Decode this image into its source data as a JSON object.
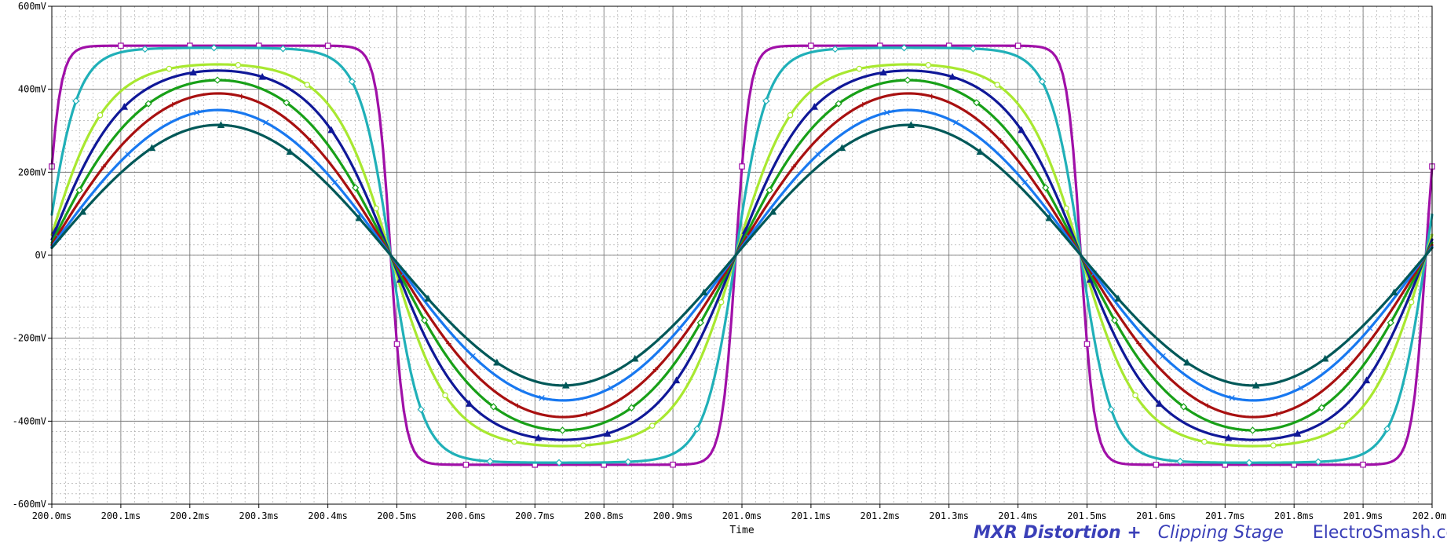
{
  "chart_data": {
    "type": "line",
    "title": "",
    "xlabel": "Time",
    "ylabel": "",
    "xlim": [
      200.0,
      202.0
    ],
    "ylim": [
      -600,
      600
    ],
    "x_unit": "ms",
    "y_unit": "mV",
    "grid": true,
    "x_ticks": [
      200.0,
      200.1,
      200.2,
      200.3,
      200.4,
      200.5,
      200.6,
      200.7,
      200.8,
      200.9,
      201.0,
      201.1,
      201.2,
      201.3,
      201.4,
      201.5,
      201.6,
      201.7,
      201.8,
      201.9,
      202.0
    ],
    "x_tick_labels": [
      "200.0ms",
      "200.1ms",
      "200.2ms",
      "200.3ms",
      "200.4ms",
      "200.5ms",
      "200.6ms",
      "200.7ms",
      "200.8ms",
      "200.9ms",
      "201.0ms",
      "201.1ms",
      "201.2ms",
      "201.3ms",
      "201.4ms",
      "201.5ms",
      "201.6ms",
      "201.7ms",
      "201.8ms",
      "201.9ms",
      "202.0ms"
    ],
    "y_ticks": [
      600,
      400,
      200,
      0,
      -200,
      -400,
      -600
    ],
    "y_tick_labels": [
      "600mV",
      "400mV",
      "200mV",
      "0V",
      "-200mV",
      "-400mV",
      "-600mV"
    ],
    "signal": {
      "period_ms": 1.0,
      "phase_ms": -0.009,
      "x_start": 200.0,
      "x_end": 202.0,
      "samples": 401
    },
    "series": [
      {
        "color": "#a010a8",
        "amplitude_mV": 505,
        "drive": 8.0,
        "marker": "square"
      },
      {
        "color": "#20b0b8",
        "amplitude_mV": 500,
        "drive": 3.5,
        "marker": "diamond"
      },
      {
        "color": "#a8e830",
        "amplitude_mV": 460,
        "drive": 1.8,
        "marker": "circle"
      },
      {
        "color": "#101898",
        "amplitude_mV": 445,
        "drive": 1.3,
        "marker": "triangle"
      },
      {
        "color": "#18a018",
        "amplitude_mV": 422,
        "drive": 0.9,
        "marker": "diamond"
      },
      {
        "color": "#a81010",
        "amplitude_mV": 390,
        "drive": 0.6,
        "marker": "plus"
      },
      {
        "color": "#1878f0",
        "amplitude_mV": 350,
        "drive": 0.35,
        "marker": "x"
      },
      {
        "color": "#005858",
        "amplitude_mV": 314,
        "drive": 0.05,
        "marker": "triangle"
      }
    ]
  },
  "footer": {
    "brand_part1": "MXR Distortion +",
    "brand_part2": "Clipping Stage",
    "brand_part3": "ElectroSmash.com"
  },
  "colors": {
    "grid_major": "#6e6e6e",
    "grid_minor": "#a0a0a0",
    "axis": "#000000",
    "brand": "#3a3fb8"
  }
}
